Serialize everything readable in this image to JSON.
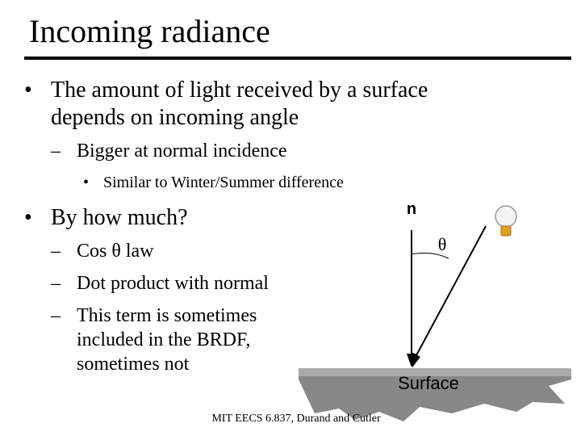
{
  "header": {
    "title": "Incoming radiance"
  },
  "bullets": [
    {
      "marker": "•",
      "lines": [
        "The amount of light received by a surface",
        "depends on incoming angle"
      ],
      "sub": [
        {
          "marker": "–",
          "lines": [
            "Bigger at normal incidence"
          ],
          "sub": [
            {
              "marker": "•",
              "lines": [
                "Similar to Winter/Summer difference"
              ]
            }
          ]
        }
      ]
    },
    {
      "marker": "•",
      "lines": [
        "By how much?"
      ],
      "sub": [
        {
          "marker": "–",
          "lines": [
            "Cos θ law"
          ]
        },
        {
          "marker": "–",
          "lines": [
            "Dot product with normal"
          ]
        },
        {
          "marker": "–",
          "lines": [
            "This term is sometimes",
            "included in the BRDF,",
            "sometimes not"
          ]
        }
      ]
    }
  ],
  "diagram": {
    "normal_label": "n",
    "angle_label": "θ",
    "surface_label": "Surface"
  },
  "footer": "MIT EECS 6.837, Durand and Cutler"
}
